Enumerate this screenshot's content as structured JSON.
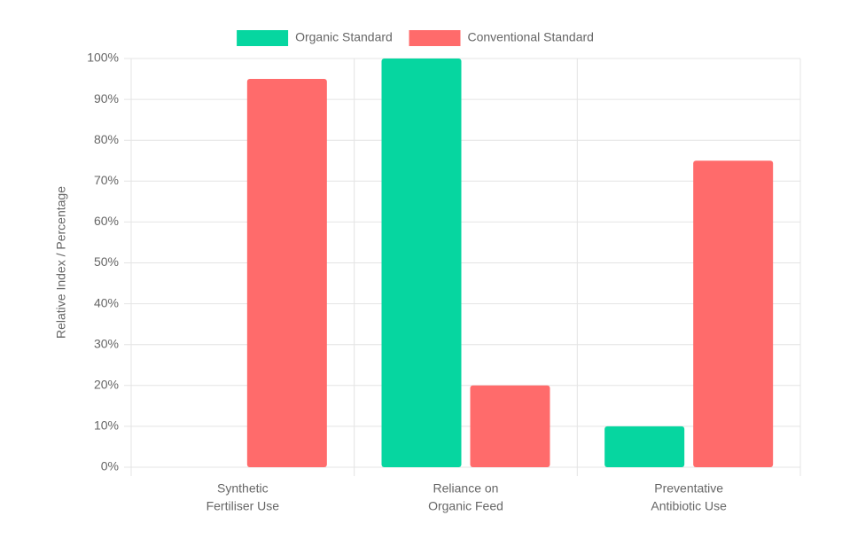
{
  "chart_data": {
    "type": "bar",
    "categories": [
      [
        "Synthetic",
        "Fertiliser Use"
      ],
      [
        "Reliance on",
        "Organic Feed"
      ],
      [
        "Preventative",
        "Antibiotic Use"
      ]
    ],
    "series": [
      {
        "name": "Organic Standard",
        "color": "#06d6a0",
        "values": [
          0,
          100,
          10
        ]
      },
      {
        "name": "Conventional Standard",
        "color": "#ff6b6b",
        "values": [
          95,
          20,
          75
        ]
      }
    ],
    "y_label": "Relative Index / Percentage",
    "ylim": [
      0,
      100
    ],
    "yticks": [
      {
        "value": 0,
        "label": "0%"
      },
      {
        "value": 10,
        "label": "10%"
      },
      {
        "value": 20,
        "label": "20%"
      },
      {
        "value": 30,
        "label": "30%"
      },
      {
        "value": 40,
        "label": "40%"
      },
      {
        "value": 50,
        "label": "50%"
      },
      {
        "value": 60,
        "label": "60%"
      },
      {
        "value": 70,
        "label": "70%"
      },
      {
        "value": 80,
        "label": "80%"
      },
      {
        "value": 90,
        "label": "90%"
      },
      {
        "value": 100,
        "label": "100%"
      }
    ],
    "grid": true,
    "legend": "top"
  }
}
